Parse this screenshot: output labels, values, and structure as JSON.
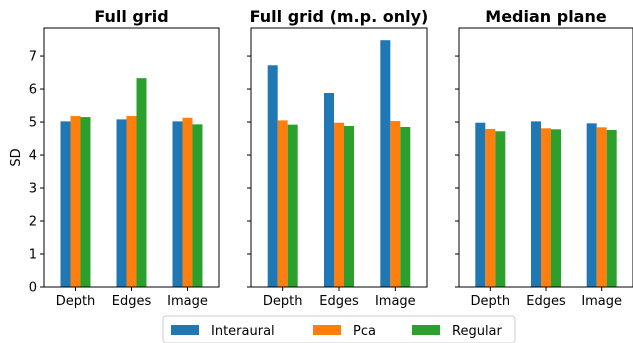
{
  "chart_data": [
    {
      "type": "bar",
      "title": "Full grid",
      "ylabel": "SD",
      "categories": [
        "Depth",
        "Edges",
        "Image"
      ],
      "series": [
        {
          "name": "Interaural",
          "values": [
            5.02,
            5.08,
            5.02
          ]
        },
        {
          "name": "Pca",
          "values": [
            5.18,
            5.18,
            5.13
          ]
        },
        {
          "name": "Regular",
          "values": [
            5.15,
            6.33,
            4.93
          ]
        }
      ],
      "ylim": [
        0,
        7.85
      ],
      "yticks": [
        "0",
        "1",
        "2",
        "3",
        "4",
        "5",
        "6",
        "7"
      ]
    },
    {
      "type": "bar",
      "title": "Full grid (m.p. only)",
      "ylabel": "",
      "categories": [
        "Depth",
        "Edges",
        "Image"
      ],
      "series": [
        {
          "name": "Interaural",
          "values": [
            6.72,
            5.88,
            7.48
          ]
        },
        {
          "name": "Pca",
          "values": [
            5.05,
            4.98,
            5.03
          ]
        },
        {
          "name": "Regular",
          "values": [
            4.92,
            4.88,
            4.85
          ]
        }
      ],
      "ylim": [
        0,
        7.85
      ],
      "yticks": []
    },
    {
      "type": "bar",
      "title": "Median plane",
      "ylabel": "",
      "categories": [
        "Depth",
        "Edges",
        "Image"
      ],
      "series": [
        {
          "name": "Interaural",
          "values": [
            4.98,
            5.02,
            4.96
          ]
        },
        {
          "name": "Pca",
          "values": [
            4.79,
            4.81,
            4.84
          ]
        },
        {
          "name": "Regular",
          "values": [
            4.72,
            4.78,
            4.76
          ]
        }
      ],
      "ylim": [
        0,
        7.85
      ],
      "yticks": []
    }
  ],
  "legend": {
    "position": "bottom-center",
    "entries": [
      "Interaural",
      "Pca",
      "Regular"
    ]
  },
  "colors": [
    "#1f77b4",
    "#ff7f0e",
    "#2ca02c"
  ]
}
